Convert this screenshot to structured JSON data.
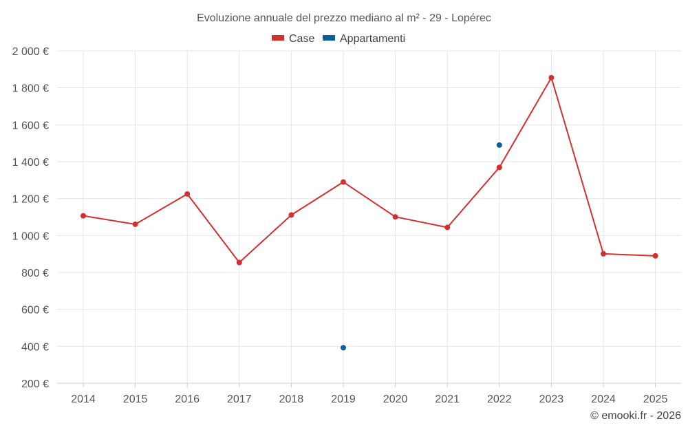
{
  "chart_data": {
    "type": "line",
    "title": "Evoluzione annuale del prezzo mediano al m² - 29 - Lopérec",
    "categories": [
      "2014",
      "2015",
      "2016",
      "2017",
      "2018",
      "2019",
      "2020",
      "2021",
      "2022",
      "2023",
      "2024",
      "2025"
    ],
    "ylim": [
      200,
      2000
    ],
    "yticks": [
      200,
      400,
      600,
      800,
      1000,
      1200,
      1400,
      1600,
      1800,
      2000
    ],
    "ytick_labels": [
      "200 €",
      "400 €",
      "600 €",
      "800 €",
      "1 000 €",
      "1 200 €",
      "1 400 €",
      "1 600 €",
      "1 800 €",
      "2 000 €"
    ],
    "grid": true,
    "legend_position": "top-center",
    "series": [
      {
        "name": "Case",
        "color": "#d32f2f",
        "values": [
          1107,
          1061,
          1225,
          854,
          1111,
          1290,
          1101,
          1044,
          1369,
          1855,
          901,
          890
        ]
      },
      {
        "name": "Appartamenti",
        "color": "#0d5f9a",
        "values": [
          null,
          null,
          null,
          null,
          null,
          392,
          null,
          null,
          1490,
          null,
          null,
          null
        ]
      }
    ],
    "credit": "© emooki.fr - 2026"
  }
}
